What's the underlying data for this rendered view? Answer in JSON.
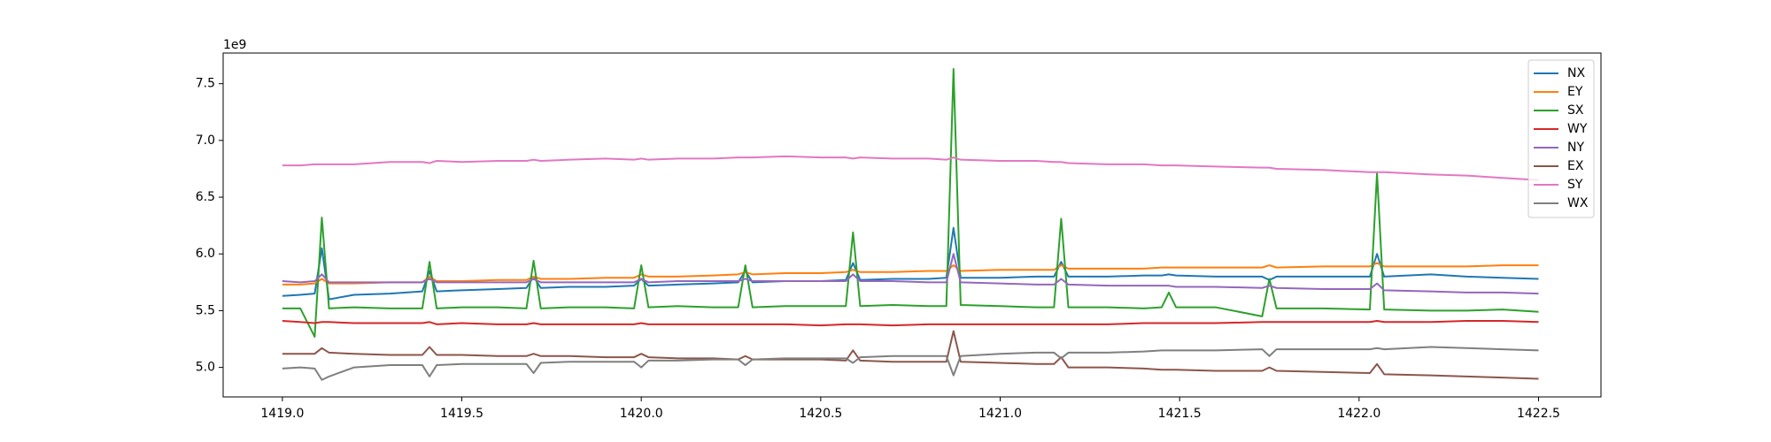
{
  "chart_data": {
    "type": "line",
    "offset_text": "1e9",
    "x": [
      1419.0,
      1419.05,
      1419.09,
      1419.11,
      1419.13,
      1419.2,
      1419.3,
      1419.39,
      1419.41,
      1419.43,
      1419.5,
      1419.6,
      1419.68,
      1419.7,
      1419.72,
      1419.8,
      1419.9,
      1419.98,
      1420.0,
      1420.02,
      1420.1,
      1420.2,
      1420.27,
      1420.29,
      1420.31,
      1420.4,
      1420.5,
      1420.57,
      1420.59,
      1420.61,
      1420.7,
      1420.8,
      1420.85,
      1420.87,
      1420.89,
      1421.0,
      1421.1,
      1421.15,
      1421.17,
      1421.19,
      1421.3,
      1421.4,
      1421.45,
      1421.47,
      1421.49,
      1421.6,
      1421.73,
      1421.75,
      1421.77,
      1421.9,
      1422.03,
      1422.05,
      1422.07,
      1422.2,
      1422.3,
      1422.4,
      1422.5
    ],
    "series": [
      {
        "name": "NX",
        "color": "#1f77b4",
        "values": [
          5.63,
          5.64,
          5.65,
          6.05,
          5.6,
          5.64,
          5.65,
          5.67,
          5.85,
          5.67,
          5.68,
          5.69,
          5.7,
          5.8,
          5.7,
          5.71,
          5.71,
          5.72,
          5.78,
          5.72,
          5.73,
          5.74,
          5.75,
          5.85,
          5.75,
          5.76,
          5.76,
          5.77,
          5.92,
          5.77,
          5.78,
          5.78,
          5.79,
          6.23,
          5.79,
          5.79,
          5.8,
          5.8,
          5.93,
          5.8,
          5.8,
          5.81,
          5.81,
          5.82,
          5.81,
          5.8,
          5.8,
          5.77,
          5.8,
          5.8,
          5.8,
          6.0,
          5.8,
          5.82,
          5.8,
          5.79,
          5.78
        ]
      },
      {
        "name": "EY",
        "color": "#ff7f0e",
        "values": [
          5.73,
          5.73,
          5.74,
          5.78,
          5.74,
          5.74,
          5.75,
          5.75,
          5.8,
          5.76,
          5.76,
          5.77,
          5.77,
          5.8,
          5.78,
          5.78,
          5.79,
          5.79,
          5.82,
          5.8,
          5.8,
          5.81,
          5.82,
          5.84,
          5.82,
          5.83,
          5.83,
          5.84,
          5.86,
          5.84,
          5.84,
          5.85,
          5.85,
          5.9,
          5.85,
          5.86,
          5.86,
          5.86,
          5.9,
          5.87,
          5.87,
          5.87,
          5.88,
          5.88,
          5.88,
          5.88,
          5.88,
          5.9,
          5.88,
          5.89,
          5.89,
          5.92,
          5.89,
          5.89,
          5.89,
          5.9,
          5.9
        ]
      },
      {
        "name": "SX",
        "color": "#2ca02c",
        "values": [
          5.52,
          5.52,
          5.27,
          6.32,
          5.52,
          5.53,
          5.52,
          5.52,
          5.93,
          5.52,
          5.53,
          5.53,
          5.52,
          5.94,
          5.52,
          5.53,
          5.53,
          5.52,
          5.9,
          5.53,
          5.54,
          5.53,
          5.53,
          5.9,
          5.53,
          5.54,
          5.54,
          5.54,
          6.19,
          5.54,
          5.55,
          5.54,
          5.54,
          7.63,
          5.55,
          5.54,
          5.53,
          5.53,
          6.31,
          5.53,
          5.53,
          5.52,
          5.53,
          5.66,
          5.53,
          5.53,
          5.45,
          5.78,
          5.52,
          5.52,
          5.51,
          6.71,
          5.51,
          5.5,
          5.5,
          5.51,
          5.49
        ]
      },
      {
        "name": "WY",
        "color": "#d62728",
        "values": [
          5.41,
          5.4,
          5.39,
          5.4,
          5.4,
          5.39,
          5.39,
          5.39,
          5.4,
          5.38,
          5.39,
          5.38,
          5.38,
          5.39,
          5.38,
          5.38,
          5.38,
          5.38,
          5.39,
          5.38,
          5.38,
          5.38,
          5.38,
          5.38,
          5.38,
          5.38,
          5.37,
          5.38,
          5.38,
          5.38,
          5.37,
          5.38,
          5.38,
          5.38,
          5.38,
          5.38,
          5.38,
          5.38,
          5.38,
          5.38,
          5.38,
          5.39,
          5.39,
          5.39,
          5.39,
          5.39,
          5.4,
          5.4,
          5.4,
          5.4,
          5.4,
          5.41,
          5.4,
          5.4,
          5.41,
          5.41,
          5.4
        ]
      },
      {
        "name": "NY",
        "color": "#9467bd",
        "values": [
          5.76,
          5.75,
          5.76,
          5.82,
          5.75,
          5.75,
          5.75,
          5.75,
          5.78,
          5.75,
          5.75,
          5.75,
          5.75,
          5.78,
          5.75,
          5.75,
          5.75,
          5.75,
          5.78,
          5.75,
          5.76,
          5.76,
          5.76,
          5.78,
          5.76,
          5.76,
          5.76,
          5.76,
          5.82,
          5.76,
          5.76,
          5.75,
          5.75,
          6.0,
          5.75,
          5.74,
          5.73,
          5.73,
          5.78,
          5.73,
          5.72,
          5.72,
          5.72,
          5.72,
          5.71,
          5.71,
          5.7,
          5.72,
          5.7,
          5.69,
          5.69,
          5.74,
          5.68,
          5.67,
          5.66,
          5.66,
          5.65
        ]
      },
      {
        "name": "EX",
        "color": "#8c564b",
        "values": [
          5.12,
          5.12,
          5.12,
          5.17,
          5.13,
          5.12,
          5.11,
          5.11,
          5.18,
          5.11,
          5.11,
          5.1,
          5.1,
          5.12,
          5.1,
          5.1,
          5.09,
          5.09,
          5.12,
          5.09,
          5.08,
          5.08,
          5.07,
          5.1,
          5.07,
          5.07,
          5.07,
          5.06,
          5.15,
          5.06,
          5.05,
          5.05,
          5.05,
          5.32,
          5.05,
          5.04,
          5.03,
          5.03,
          5.09,
          5.0,
          5.0,
          4.99,
          4.98,
          4.98,
          4.98,
          4.97,
          4.97,
          5.0,
          4.97,
          4.96,
          4.95,
          5.03,
          4.94,
          4.93,
          4.92,
          4.91,
          4.9
        ]
      },
      {
        "name": "SY",
        "color": "#e377c2",
        "values": [
          6.78,
          6.78,
          6.79,
          6.79,
          6.79,
          6.79,
          6.81,
          6.81,
          6.8,
          6.82,
          6.81,
          6.82,
          6.82,
          6.83,
          6.82,
          6.83,
          6.84,
          6.83,
          6.84,
          6.83,
          6.84,
          6.84,
          6.85,
          6.85,
          6.85,
          6.86,
          6.85,
          6.85,
          6.84,
          6.85,
          6.84,
          6.84,
          6.83,
          6.85,
          6.83,
          6.82,
          6.82,
          6.81,
          6.81,
          6.8,
          6.79,
          6.79,
          6.78,
          6.78,
          6.78,
          6.77,
          6.76,
          6.76,
          6.75,
          6.74,
          6.72,
          6.72,
          6.72,
          6.7,
          6.69,
          6.67,
          6.65
        ]
      },
      {
        "name": "WX",
        "color": "#7f7f7f",
        "values": [
          4.99,
          5.0,
          4.99,
          4.89,
          4.92,
          5.0,
          5.02,
          5.02,
          4.92,
          5.02,
          5.03,
          5.03,
          5.03,
          4.95,
          5.04,
          5.05,
          5.05,
          5.05,
          5.0,
          5.06,
          5.06,
          5.07,
          5.07,
          5.02,
          5.07,
          5.08,
          5.08,
          5.08,
          5.04,
          5.09,
          5.1,
          5.1,
          5.1,
          4.93,
          5.1,
          5.12,
          5.13,
          5.13,
          5.08,
          5.13,
          5.13,
          5.14,
          5.15,
          5.15,
          5.15,
          5.15,
          5.16,
          5.1,
          5.16,
          5.16,
          5.16,
          5.17,
          5.16,
          5.18,
          5.17,
          5.16,
          5.15
        ]
      }
    ],
    "xlim": [
      1418.835,
      1422.674
    ],
    "ylim": [
      4.74,
      7.77
    ],
    "xticks": [
      {
        "value": 1419.0,
        "label": "1419.0"
      },
      {
        "value": 1419.5,
        "label": "1419.5"
      },
      {
        "value": 1420.0,
        "label": "1420.0"
      },
      {
        "value": 1420.5,
        "label": "1420.5"
      },
      {
        "value": 1421.0,
        "label": "1421.0"
      },
      {
        "value": 1421.5,
        "label": "1421.5"
      },
      {
        "value": 1422.0,
        "label": "1422.0"
      },
      {
        "value": 1422.5,
        "label": "1422.5"
      }
    ],
    "yticks": [
      {
        "value": 5.0,
        "label": "5.0"
      },
      {
        "value": 5.5,
        "label": "5.5"
      },
      {
        "value": 6.0,
        "label": "6.0"
      },
      {
        "value": 6.5,
        "label": "6.5"
      },
      {
        "value": 7.0,
        "label": "7.0"
      },
      {
        "value": 7.5,
        "label": "7.5"
      }
    ],
    "grid": false,
    "legend": "upper right"
  }
}
